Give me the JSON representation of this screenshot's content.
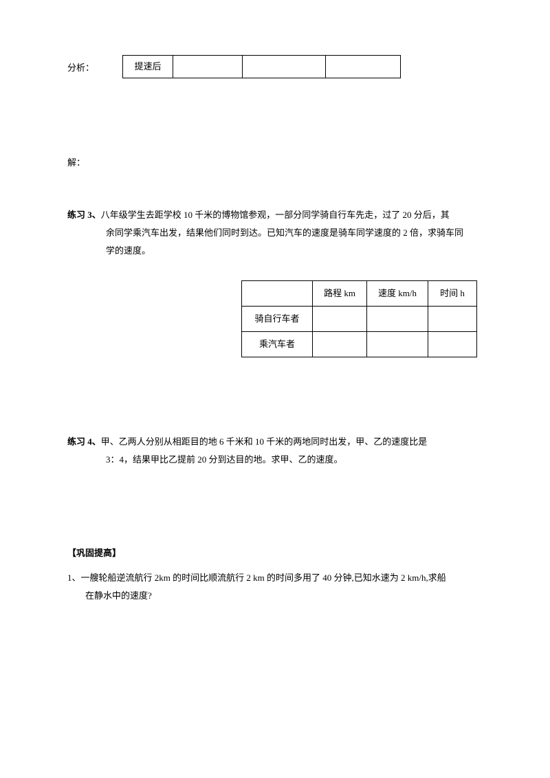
{
  "top": {
    "analysis_label": "分析：",
    "small_table": {
      "row_label": "提速后",
      "c2": "",
      "c3": "",
      "c4": ""
    },
    "solve_label": "解："
  },
  "practice3": {
    "label": "练习 3、",
    "line1": "八年级学生去距学校 10 千米的博物馆参观，一部分同学骑自行车先走，过了 20 分后，其",
    "line2": "余同学乘汽车出发，结果他们同时到达。已知汽车的速度是骑车同学速度的 2 倍，求骑车同",
    "line3": "学的速度。",
    "table": {
      "head_blank": "",
      "head_distance": "路程 km",
      "head_speed": "速度 km/h",
      "head_time": "时间 h",
      "row1_label": "骑自行车者",
      "row2_label": "乘汽车者"
    }
  },
  "practice4": {
    "label": "练习 4、",
    "line1": "甲、乙两人分别从相距目的地 6 千米和 10 千米的两地同时出发，甲、乙的速度比是",
    "line2": "3：4，结果甲比乙提前 20 分到达目的地。求甲、乙的速度。"
  },
  "consolidate": {
    "header": "【巩固提高】",
    "q1_line1": "1、一艘轮船逆流航行 2km 的时间比顺流航行 2  km 的时间多用了 40 分钟,已知水速为 2  km/h,求船",
    "q1_line2": "在静水中的速度?"
  }
}
